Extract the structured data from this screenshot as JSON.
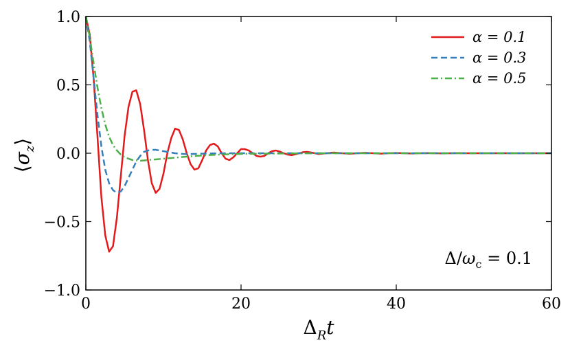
{
  "chart_data": {
    "type": "line",
    "title": "",
    "xlabel": "Δ_R t",
    "ylabel": "⟨σ_z⟩",
    "xlim": [
      0,
      60
    ],
    "ylim": [
      -1.0,
      1.0
    ],
    "xticks": [
      0,
      20,
      40,
      60
    ],
    "xtick_labels": [
      "0",
      "20",
      "40",
      "60"
    ],
    "yticks": [
      -1.0,
      -0.5,
      0.0,
      0.5,
      1.0
    ],
    "ytick_labels": [
      "−1.0",
      "−0.5",
      "0.0",
      "0.5",
      "1.0"
    ],
    "grid": false,
    "legend_position": "top-right",
    "annotation": "Δ/ω_c = 0.1",
    "series": [
      {
        "name": "α = 0.1",
        "color": "#e31a1c",
        "style": "solid",
        "x": [
          0,
          0.5,
          1,
          1.5,
          2,
          2.5,
          3,
          3.5,
          4,
          4.5,
          5,
          5.5,
          6,
          6.5,
          7,
          7.5,
          8,
          8.5,
          9,
          9.5,
          10,
          10.5,
          11,
          11.5,
          12,
          12.5,
          13,
          13.5,
          14,
          14.5,
          15,
          15.5,
          16,
          16.5,
          17,
          17.5,
          18,
          18.5,
          19,
          19.5,
          20,
          20.5,
          21,
          21.5,
          22,
          22.5,
          23,
          23.5,
          24,
          24.5,
          25,
          25.5,
          26,
          26.5,
          27,
          27.5,
          28,
          28.5,
          29,
          29.5,
          30,
          31,
          32,
          33,
          34,
          35,
          36,
          37,
          38,
          39,
          40,
          41,
          42,
          43,
          44,
          45,
          46,
          47,
          48,
          49,
          50,
          52,
          54,
          56,
          58,
          60
        ],
        "y": [
          1.0,
          0.87,
          0.55,
          0.12,
          -0.32,
          -0.6,
          -0.72,
          -0.68,
          -0.47,
          -0.17,
          0.13,
          0.34,
          0.45,
          0.46,
          0.36,
          0.17,
          -0.05,
          -0.22,
          -0.29,
          -0.26,
          -0.15,
          0.0,
          0.11,
          0.18,
          0.17,
          0.1,
          0.0,
          -0.08,
          -0.12,
          -0.11,
          -0.05,
          0.02,
          0.06,
          0.07,
          0.05,
          0.0,
          -0.04,
          -0.05,
          -0.03,
          0.0,
          0.03,
          0.03,
          0.02,
          0.0,
          -0.02,
          -0.025,
          -0.02,
          0.0,
          0.015,
          0.02,
          0.012,
          0.0,
          -0.01,
          -0.014,
          -0.008,
          0.0,
          0.008,
          0.01,
          0.006,
          0.0,
          -0.006,
          0.0,
          0.005,
          0.0,
          -0.004,
          0.0,
          0.003,
          0.0,
          -0.003,
          0.0,
          0.002,
          0.0,
          -0.002,
          0.0,
          0.001,
          0.0,
          -0.001,
          0.0,
          0.001,
          0.0,
          0.0,
          0.0,
          0.0,
          0.0,
          0.0,
          0.0
        ]
      },
      {
        "name": "α = 0.3",
        "color": "#377eb8",
        "style": "dashed",
        "x": [
          0,
          0.5,
          1,
          1.5,
          2,
          2.5,
          3,
          3.5,
          4,
          4.5,
          5,
          5.5,
          6,
          6.5,
          7,
          7.5,
          8,
          8.5,
          9,
          9.5,
          10,
          10.5,
          11,
          11.5,
          12,
          12.5,
          13,
          14,
          15,
          16,
          17,
          18,
          20,
          22,
          25,
          30,
          40,
          50,
          60
        ],
        "y": [
          1.0,
          0.82,
          0.55,
          0.28,
          0.05,
          -0.12,
          -0.22,
          -0.27,
          -0.29,
          -0.28,
          -0.24,
          -0.18,
          -0.12,
          -0.06,
          -0.02,
          0.01,
          0.02,
          0.025,
          0.025,
          0.02,
          0.015,
          0.01,
          0.005,
          0.0,
          -0.003,
          -0.005,
          -0.006,
          -0.005,
          -0.003,
          -0.002,
          -0.001,
          0.0,
          0.0,
          0.0,
          0.0,
          0.0,
          0.0,
          0.0,
          0.0
        ]
      },
      {
        "name": "α = 0.5",
        "color": "#4daf4a",
        "style": "dashdot",
        "x": [
          0,
          0.5,
          1,
          1.5,
          2,
          2.5,
          3,
          3.5,
          4,
          4.5,
          5,
          5.5,
          6,
          6.5,
          7,
          7.5,
          8,
          8.5,
          9,
          10,
          11,
          12,
          13,
          14,
          16,
          18,
          20,
          25,
          30,
          40,
          50,
          60
        ],
        "y": [
          1.0,
          0.85,
          0.66,
          0.48,
          0.33,
          0.21,
          0.12,
          0.06,
          0.02,
          -0.01,
          -0.03,
          -0.04,
          -0.05,
          -0.052,
          -0.055,
          -0.053,
          -0.05,
          -0.047,
          -0.045,
          -0.04,
          -0.035,
          -0.03,
          -0.025,
          -0.02,
          -0.013,
          -0.008,
          -0.005,
          -0.002,
          0.0,
          0.0,
          0.0,
          0.0
        ]
      }
    ]
  }
}
